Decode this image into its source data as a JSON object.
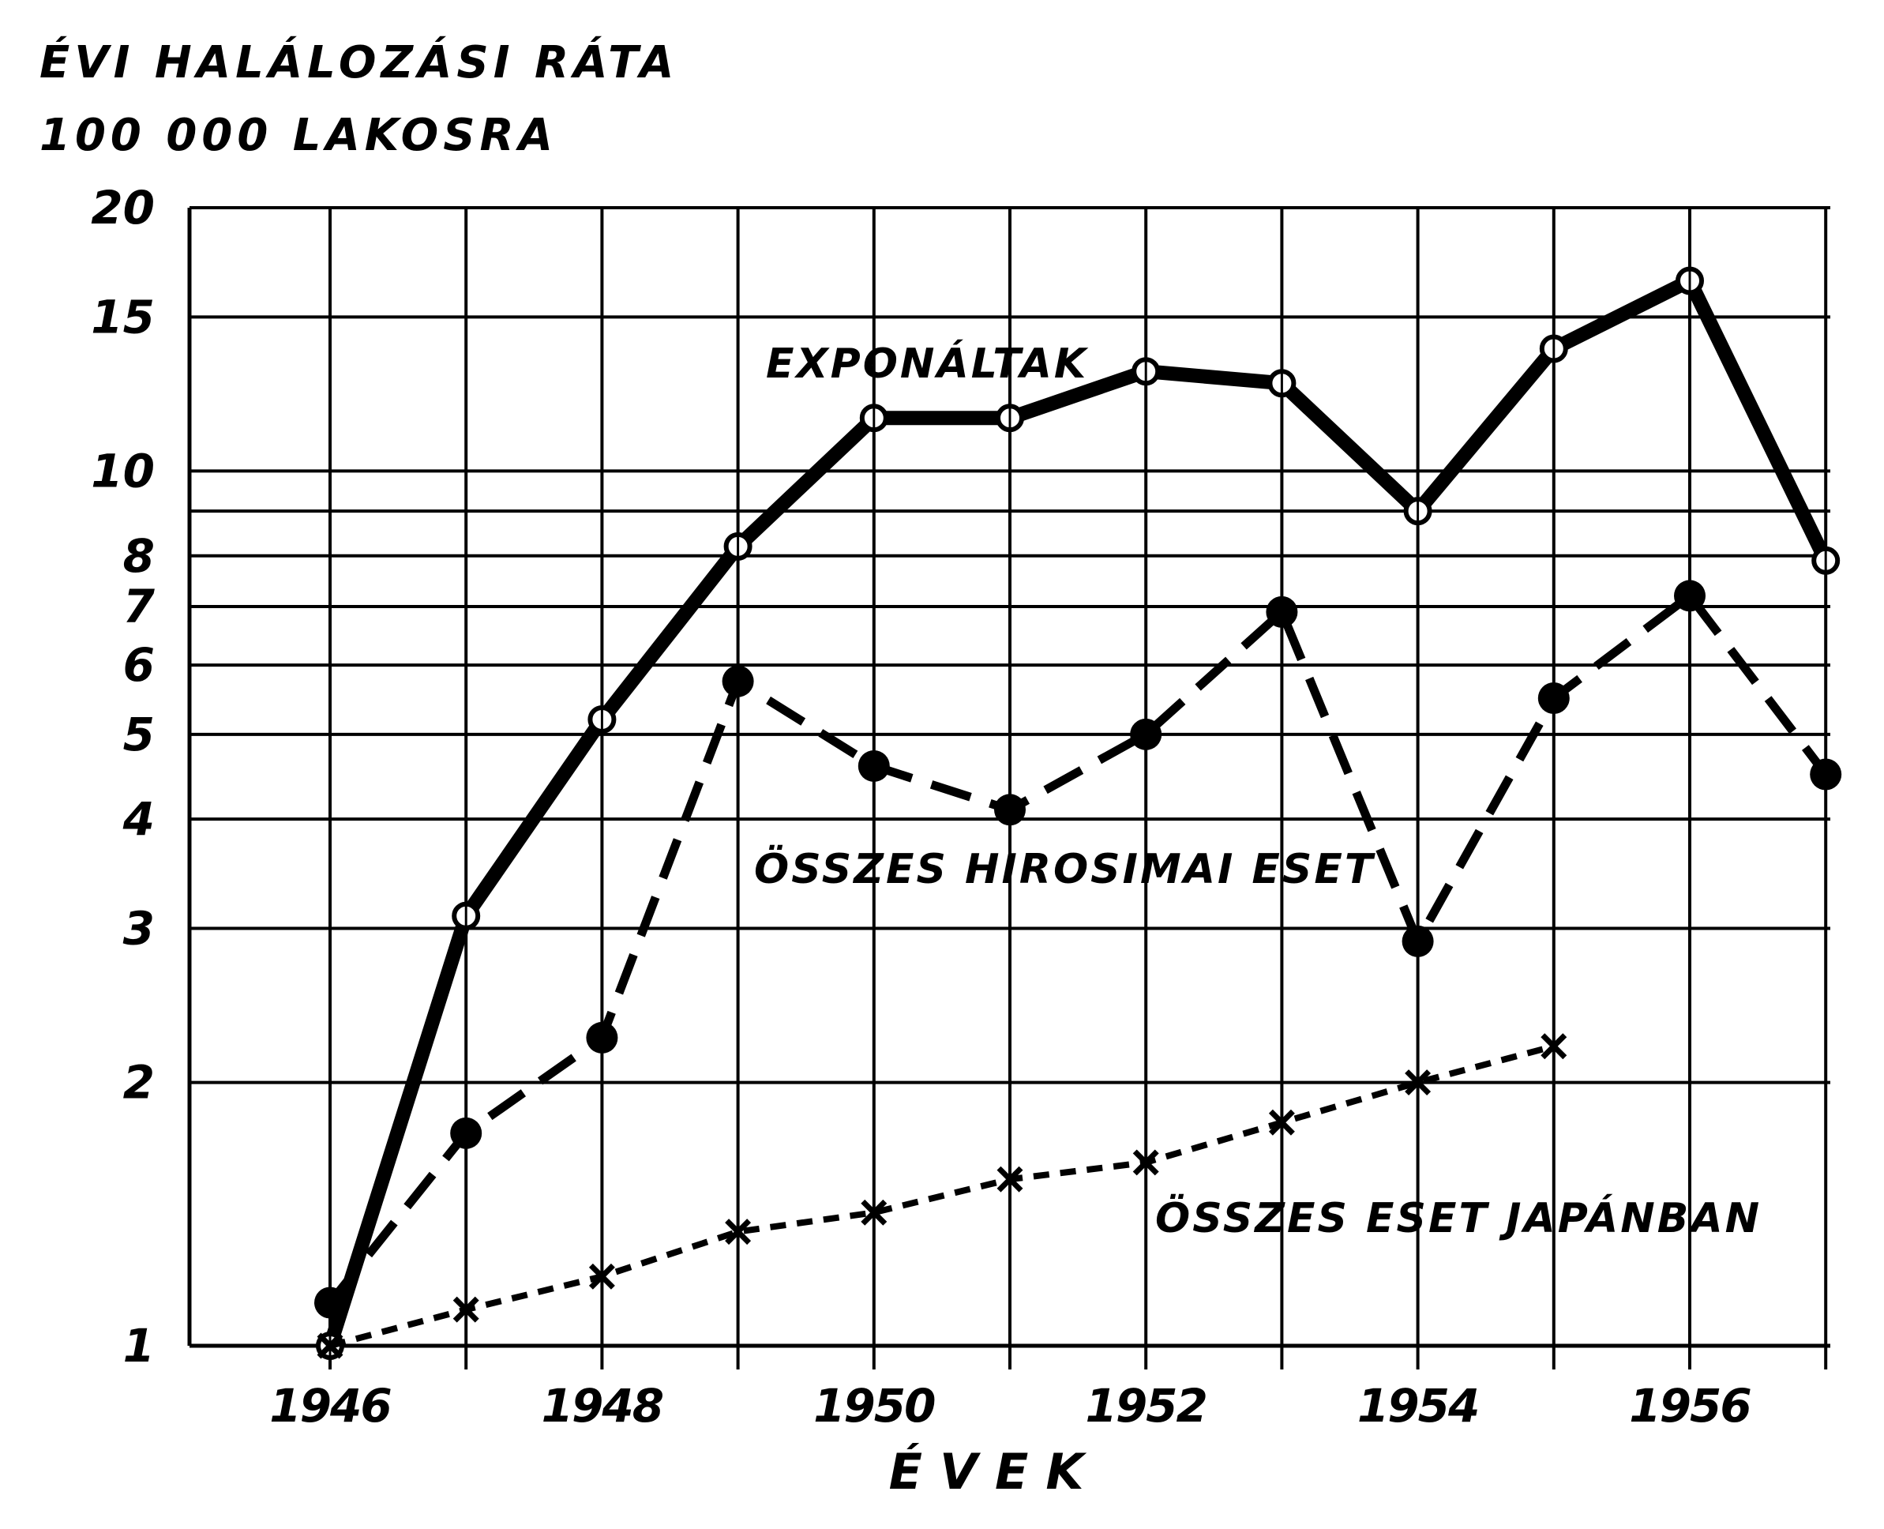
{
  "chart_data": {
    "type": "line",
    "ylabel_lines": [
      "ÉVI HALÁLOZÁSI RÁTA",
      "100 000 LAKOSRA"
    ],
    "xlabel": "ÉVEK",
    "yscale": "log",
    "ylim": [
      1,
      20
    ],
    "xlim": [
      1946,
      1957
    ],
    "grid": true,
    "y_ticks": [
      1,
      2,
      3,
      4,
      5,
      6,
      7,
      8,
      10,
      15,
      20
    ],
    "y_extra_gridlines": [
      9
    ],
    "x_ticks": [
      1946,
      1948,
      1950,
      1952,
      1954,
      1956
    ],
    "x_gridlines": [
      1946,
      1947,
      1948,
      1949,
      1950,
      1951,
      1952,
      1953,
      1954,
      1955,
      1956,
      1957
    ],
    "series": [
      {
        "name": "EXPONÁLTAK",
        "style": "solid",
        "marker": "open-circle",
        "x": [
          1946,
          1947,
          1948,
          1949,
          1950,
          1951,
          1952,
          1953,
          1954,
          1955,
          1956,
          1957
        ],
        "values": [
          1.0,
          3.1,
          5.2,
          8.2,
          11.5,
          11.5,
          13.0,
          12.6,
          9.0,
          13.8,
          16.5,
          7.9
        ]
      },
      {
        "name": "ÖSSZES HIROSIMAI ESET",
        "style": "dashed",
        "marker": "filled-circle",
        "x": [
          1946,
          1947,
          1948,
          1949,
          1950,
          1951,
          1952,
          1953,
          1954,
          1955,
          1956,
          1957
        ],
        "values": [
          1.12,
          1.75,
          2.25,
          5.75,
          4.6,
          4.1,
          5.0,
          6.9,
          2.9,
          5.5,
          7.2,
          4.5
        ]
      },
      {
        "name": "ÖSSZES ESET JAPÁNBAN",
        "style": "dotted",
        "marker": "x",
        "x": [
          1946,
          1947,
          1948,
          1949,
          1950,
          1951,
          1952,
          1953,
          1954,
          1955
        ],
        "values": [
          1.0,
          1.1,
          1.2,
          1.35,
          1.42,
          1.55,
          1.62,
          1.8,
          2.0,
          2.2
        ]
      }
    ]
  }
}
